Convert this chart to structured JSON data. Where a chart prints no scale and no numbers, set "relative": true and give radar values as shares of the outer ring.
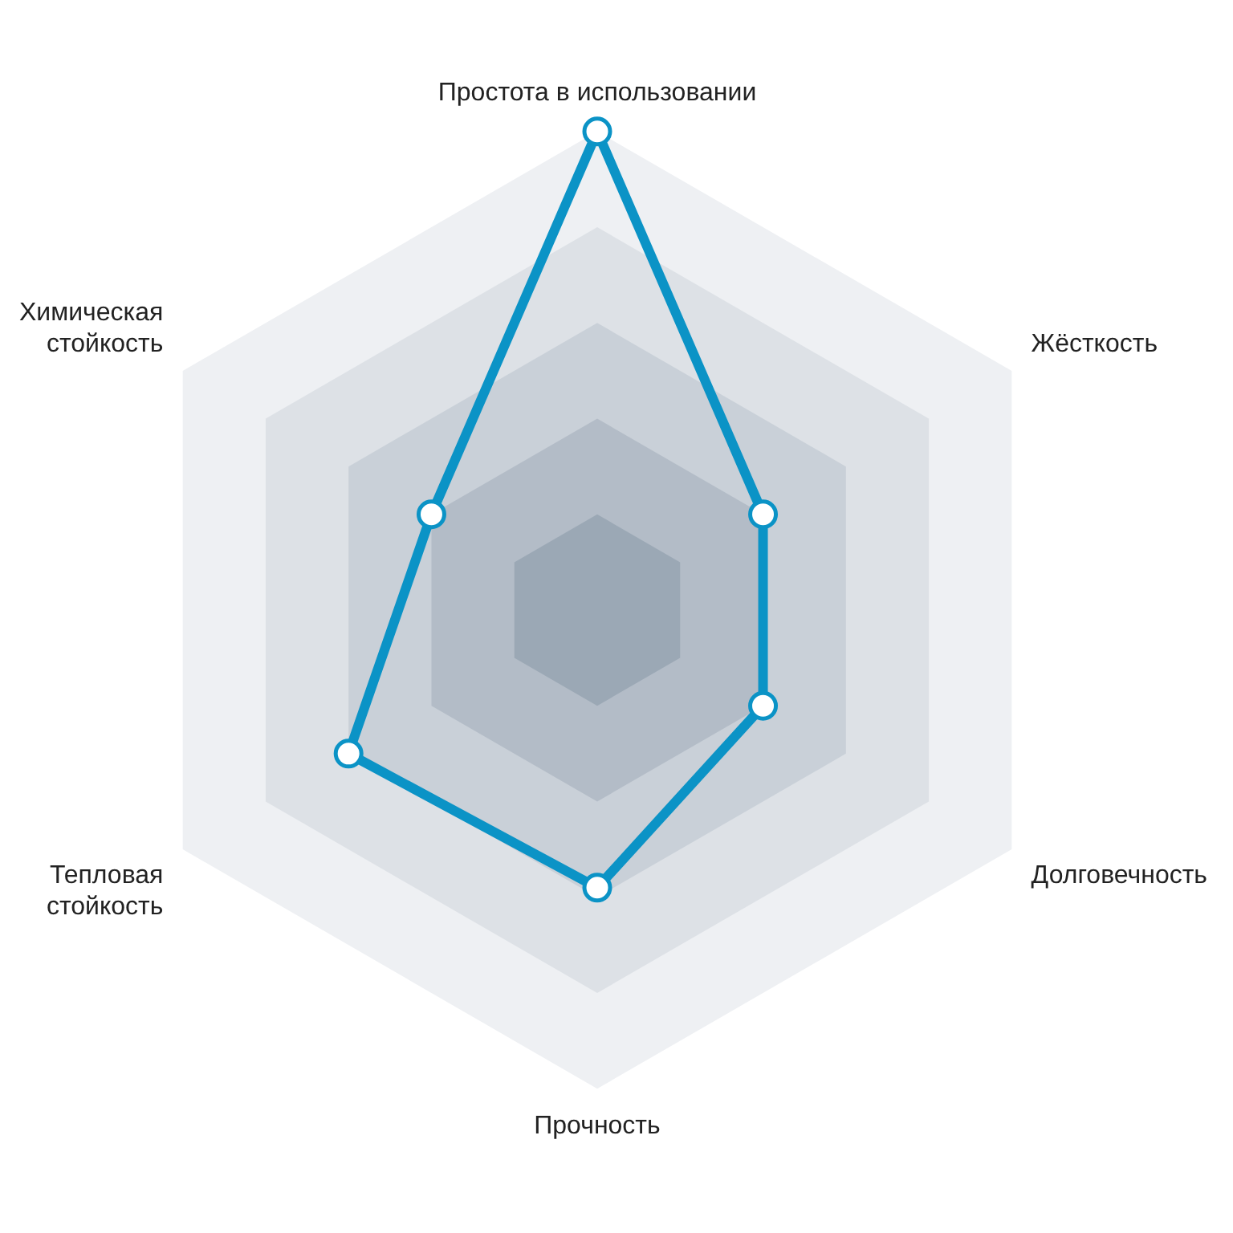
{
  "chart_data": {
    "type": "radar",
    "relative": true,
    "categories": [
      "Простота в использовании",
      "Жёсткость",
      "Долговечность",
      "Прочность",
      "Тепловая стойкость",
      "Химическая стойкость"
    ],
    "series": [
      {
        "color": "#0b93c6",
        "values": [
          1,
          0.4,
          0.4,
          0.58,
          0.6,
          0.4
        ]
      }
    ],
    "marker": "circle",
    "legend": false
  }
}
